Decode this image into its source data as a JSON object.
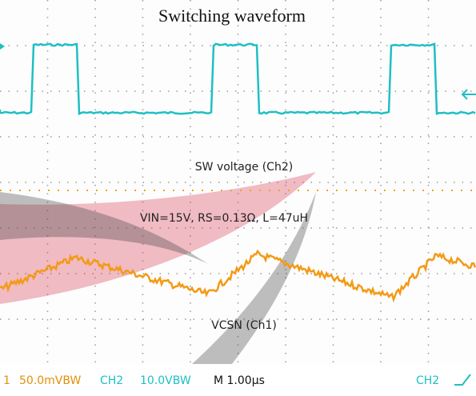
{
  "title": "Switching waveform",
  "annotations": {
    "sw_label": "SW voltage (Ch2)",
    "params": "VIN=15V, RS=0.13Ω, L=47uH",
    "vcsn_label": "VCSN (Ch1)"
  },
  "status_bar": {
    "ch1_marker": "1",
    "ch1_scale": "50.0mVBW",
    "ch2_name": "CH2",
    "ch2_scale": "10.0VBW",
    "timebase": "M 1.00µs",
    "trigger_source": "CH2"
  }
}
